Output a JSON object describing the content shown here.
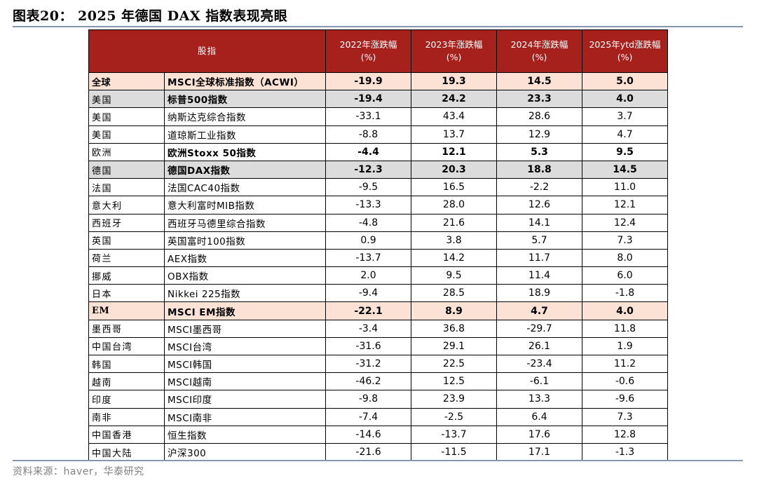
{
  "title": "图表20： 2025 年德国 DAX 指数表现亮眼",
  "source": "资料来源：haver，华泰研究",
  "table": {
    "headers": {
      "index": "股指",
      "y2022": [
        "2022年涨跌幅",
        "(%)"
      ],
      "y2023": [
        "2023年涨跌幅",
        "(%)"
      ],
      "y2024": [
        "2024年涨跌幅",
        "(%)"
      ],
      "y2025": [
        "2025年ytd涨跌幅",
        "(%)"
      ]
    },
    "rows": [
      {
        "region": "全球",
        "index": "MSCI全球标准指数（ACWI）",
        "y2022": "-19.9",
        "y2023": "19.3",
        "y2024": "14.5",
        "y2025": "5.0",
        "style": "group"
      },
      {
        "region": "美国",
        "index": "标普500指数",
        "y2022": "-19.4",
        "y2023": "24.2",
        "y2024": "23.3",
        "y2025": "4.0",
        "style": "shade"
      },
      {
        "region": "美国",
        "index": "纳斯达克综合指数",
        "y2022": "-33.1",
        "y2023": "43.4",
        "y2024": "28.6",
        "y2025": "3.7",
        "style": "plain"
      },
      {
        "region": "美国",
        "index": "道琼斯工业指数",
        "y2022": "-8.8",
        "y2023": "13.7",
        "y2024": "12.9",
        "y2025": "4.7",
        "style": "plain"
      },
      {
        "region": "欧洲",
        "index": "欧洲Stoxx 50指数",
        "y2022": "-4.4",
        "y2023": "12.1",
        "y2024": "5.3",
        "y2025": "9.5",
        "style": "bold"
      },
      {
        "region": "德国",
        "index": "德国DAX指数",
        "y2022": "-12.3",
        "y2023": "20.3",
        "y2024": "18.8",
        "y2025": "14.5",
        "style": "shade"
      },
      {
        "region": "法国",
        "index": "法国CAC40指数",
        "y2022": "-9.5",
        "y2023": "16.5",
        "y2024": "-2.2",
        "y2025": "11.0",
        "style": "plain"
      },
      {
        "region": "意大利",
        "index": "意大利富时MIB指数",
        "y2022": "-13.3",
        "y2023": "28.0",
        "y2024": "12.6",
        "y2025": "12.1",
        "style": "plain"
      },
      {
        "region": "西班牙",
        "index": "西班牙马德里综合指数",
        "y2022": "-4.8",
        "y2023": "21.6",
        "y2024": "14.1",
        "y2025": "12.4",
        "style": "plain"
      },
      {
        "region": "英国",
        "index": "英国富时100指数",
        "y2022": "0.9",
        "y2023": "3.8",
        "y2024": "5.7",
        "y2025": "7.3",
        "style": "plain"
      },
      {
        "region": "荷兰",
        "index": "AEX指数",
        "y2022": "-13.7",
        "y2023": "14.2",
        "y2024": "11.7",
        "y2025": "8.0",
        "style": "plain"
      },
      {
        "region": "挪威",
        "index": "OBX指数",
        "y2022": "2.0",
        "y2023": "9.5",
        "y2024": "11.4",
        "y2025": "6.0",
        "style": "plain"
      },
      {
        "region": "日本",
        "index": "Nikkei 225指数",
        "y2022": "-9.4",
        "y2023": "28.5",
        "y2024": "18.9",
        "y2025": "-1.8",
        "style": "plain"
      },
      {
        "region": "EM",
        "index": "MSCI EM指数",
        "y2022": "-22.1",
        "y2023": "8.9",
        "y2024": "4.7",
        "y2025": "4.0",
        "style": "group"
      },
      {
        "region": "墨西哥",
        "index": "MSCI墨西哥",
        "y2022": "-3.4",
        "y2023": "36.8",
        "y2024": "-29.7",
        "y2025": "11.8",
        "style": "plain"
      },
      {
        "region": "中国台湾",
        "index": "MSCI台湾",
        "y2022": "-31.6",
        "y2023": "29.1",
        "y2024": "26.1",
        "y2025": "1.9",
        "style": "plain"
      },
      {
        "region": "韩国",
        "index": "MSCI韩国",
        "y2022": "-31.2",
        "y2023": "22.5",
        "y2024": "-23.4",
        "y2025": "11.2",
        "style": "plain"
      },
      {
        "region": "越南",
        "index": "MSCI越南",
        "y2022": "-46.2",
        "y2023": "12.5",
        "y2024": "-6.1",
        "y2025": "-0.6",
        "style": "plain"
      },
      {
        "region": "印度",
        "index": "MSCI印度",
        "y2022": "-9.8",
        "y2023": "23.9",
        "y2024": "13.3",
        "y2025": "-9.6",
        "style": "plain"
      },
      {
        "region": "南非",
        "index": "MSCI南非",
        "y2022": "-7.4",
        "y2023": "-2.5",
        "y2024": "6.4",
        "y2025": "7.3",
        "style": "plain"
      },
      {
        "region": "中国香港",
        "index": "恒生指数",
        "y2022": "-14.6",
        "y2023": "-13.7",
        "y2024": "17.6",
        "y2025": "12.8",
        "style": "plain"
      },
      {
        "region": "中国大陆",
        "index": "沪深300",
        "y2022": "-21.6",
        "y2023": "-11.5",
        "y2024": "17.1",
        "y2025": "-1.3",
        "style": "plain"
      }
    ]
  }
}
